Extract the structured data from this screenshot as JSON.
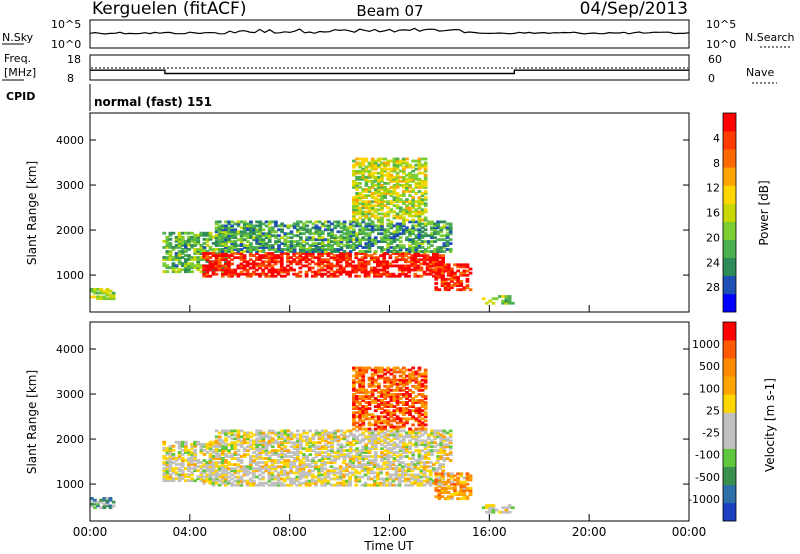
{
  "header": {
    "station": "Kerguelen (fitACF)",
    "beam": "Beam 07",
    "date": "04/Sep/2013"
  },
  "noise_panel": {
    "left_label": "N.Sky",
    "right_label": "N.Search",
    "left_ticks": [
      "10^5",
      "10^0"
    ],
    "right_ticks": [
      "10^5",
      "10^0"
    ]
  },
  "freq_panel": {
    "left_label_1": "Freq.",
    "left_label_2": "[MHz]",
    "right_label": "Nave",
    "left_ticks": [
      "18",
      "8"
    ],
    "right_ticks": [
      "60",
      "0"
    ],
    "freq_mhz": [
      {
        "from_h": 0.0,
        "to_h": 3.0,
        "value": 12.2
      },
      {
        "from_h": 3.0,
        "to_h": 17.0,
        "value": 10.6
      },
      {
        "from_h": 17.0,
        "to_h": 24.0,
        "value": 12.2
      }
    ]
  },
  "cpid": {
    "label": "CPID",
    "value": "normal (fast) 151"
  },
  "chart_data": [
    {
      "type": "heatmap",
      "parameter": "Power",
      "ylabel": "Slant Range [km]",
      "yticks": [
        "1000",
        "2000",
        "3000",
        "4000"
      ],
      "xlim_hours": [
        0,
        24
      ],
      "ylim_km": [
        180,
        4600
      ],
      "colorbar": {
        "label": "Power [dB]",
        "ticks": [
          "4",
          "8",
          "12",
          "16",
          "20",
          "24",
          "28"
        ],
        "colors": [
          "#0000ff",
          "#1e4fb4",
          "#2e8b57",
          "#4caf50",
          "#7ccd32",
          "#c8d800",
          "#ffd700",
          "#ffa500",
          "#ff6a00",
          "#ff3c00",
          "#ff0000"
        ]
      },
      "echo_regions": [
        {
          "t0": 0.0,
          "t1": 1.0,
          "r0": 450,
          "r1": 700,
          "v": 0.45
        },
        {
          "t0": 2.9,
          "t1": 5.5,
          "r0": 1050,
          "r1": 1950,
          "v": 0.35
        },
        {
          "t0": 4.5,
          "t1": 14.2,
          "r0": 950,
          "r1": 1500,
          "v": 0.95
        },
        {
          "t0": 5.0,
          "t1": 14.5,
          "r0": 1500,
          "r1": 2200,
          "v": 0.3
        },
        {
          "t0": 10.5,
          "t1": 13.5,
          "r0": 2200,
          "r1": 3600,
          "v": 0.5
        },
        {
          "t0": 13.8,
          "t1": 15.3,
          "r0": 650,
          "r1": 1250,
          "v": 0.9
        },
        {
          "t0": 15.7,
          "t1": 17.0,
          "r0": 350,
          "r1": 550,
          "v": 0.4
        }
      ]
    },
    {
      "type": "heatmap",
      "parameter": "Velocity",
      "ylabel": "Slant Range [km]",
      "yticks": [
        "1000",
        "2000",
        "3000",
        "4000"
      ],
      "xlim_hours": [
        0,
        24
      ],
      "ylim_km": [
        180,
        4600
      ],
      "colorbar": {
        "label": "Velocity [m s-1]",
        "ticks": [
          "1000",
          "500",
          "100",
          "25",
          "-25",
          "-100",
          "-500",
          "-1000"
        ],
        "colors": [
          "#1c3fbf",
          "#2e6fa8",
          "#3b8f4f",
          "#5fc83c",
          "#c0c0c0",
          "#c0c0c0",
          "#ffd700",
          "#ffa500",
          "#ff8c00",
          "#ff5a00",
          "#ff0000"
        ]
      },
      "echo_regions": [
        {
          "t0": 0.0,
          "t1": 1.0,
          "r0": 450,
          "r1": 700,
          "v": 0.3
        },
        {
          "t0": 2.9,
          "t1": 5.5,
          "r0": 1050,
          "r1": 1950,
          "v": 0.5
        },
        {
          "t0": 4.5,
          "t1": 14.2,
          "r0": 950,
          "r1": 1500,
          "v": 0.5
        },
        {
          "t0": 5.0,
          "t1": 14.5,
          "r0": 1500,
          "r1": 2200,
          "v": 0.5
        },
        {
          "t0": 10.5,
          "t1": 13.5,
          "r0": 2200,
          "r1": 3600,
          "v": 0.85
        },
        {
          "t0": 13.8,
          "t1": 15.3,
          "r0": 650,
          "r1": 1250,
          "v": 0.7
        },
        {
          "t0": 15.7,
          "t1": 17.0,
          "r0": 350,
          "r1": 550,
          "v": 0.5
        }
      ]
    }
  ],
  "x_axis": {
    "label": "Time UT",
    "ticks": [
      "00:00",
      "04:00",
      "08:00",
      "12:00",
      "16:00",
      "20:00",
      "00:00"
    ]
  }
}
